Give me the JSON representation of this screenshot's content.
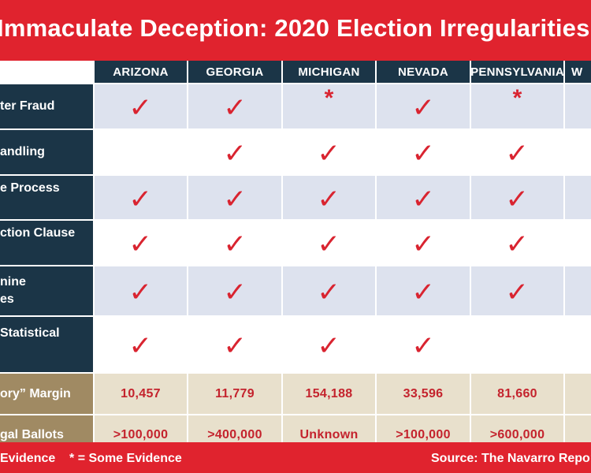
{
  "title": "Immaculate Deception: 2020 Election Irregularities",
  "columns": [
    "ARIZONA",
    "GEORGIA",
    "MICHIGAN",
    "NEVADA",
    "PENNSYLVANIA",
    "W"
  ],
  "rows": [
    {
      "label": "ter Fraud",
      "marks": [
        "check",
        "check",
        "star",
        "check",
        "star",
        ""
      ]
    },
    {
      "label": "andling",
      "marks": [
        "",
        "check",
        "check",
        "check",
        "check",
        ""
      ]
    },
    {
      "label": "e Process",
      "marks": [
        "check",
        "check",
        "check",
        "check",
        "check",
        ""
      ]
    },
    {
      "label": "ction Clause",
      "marks": [
        "check",
        "check",
        "check",
        "check",
        "check",
        ""
      ]
    },
    {
      "label": "nine\nes",
      "marks": [
        "check",
        "check",
        "check",
        "check",
        "check",
        ""
      ]
    },
    {
      "label": "Statistical",
      "marks": [
        "check",
        "check",
        "check",
        "check",
        "",
        ""
      ]
    }
  ],
  "margin_row": {
    "label": "ory” Margin",
    "values": [
      "10,457",
      "11,779",
      "154,188",
      "33,596",
      "81,660",
      ""
    ]
  },
  "ballots_row": {
    "label": "gal Ballots",
    "values": [
      ">100,000",
      ">400,000",
      "Unknown",
      ">100,000",
      ">600,000",
      ""
    ]
  },
  "symbols": {
    "check": "✓",
    "star": "*"
  },
  "footer": {
    "legend": "Evidence    * = Some Evidence",
    "source": "Source: The Navarro Report"
  },
  "colors": {
    "red": "#e0232e",
    "navy": "#1b3547",
    "light_row": "#dde2ee",
    "tan": "#a08a63",
    "tan_row": "#e8e0cc",
    "mark": "#d92430"
  }
}
